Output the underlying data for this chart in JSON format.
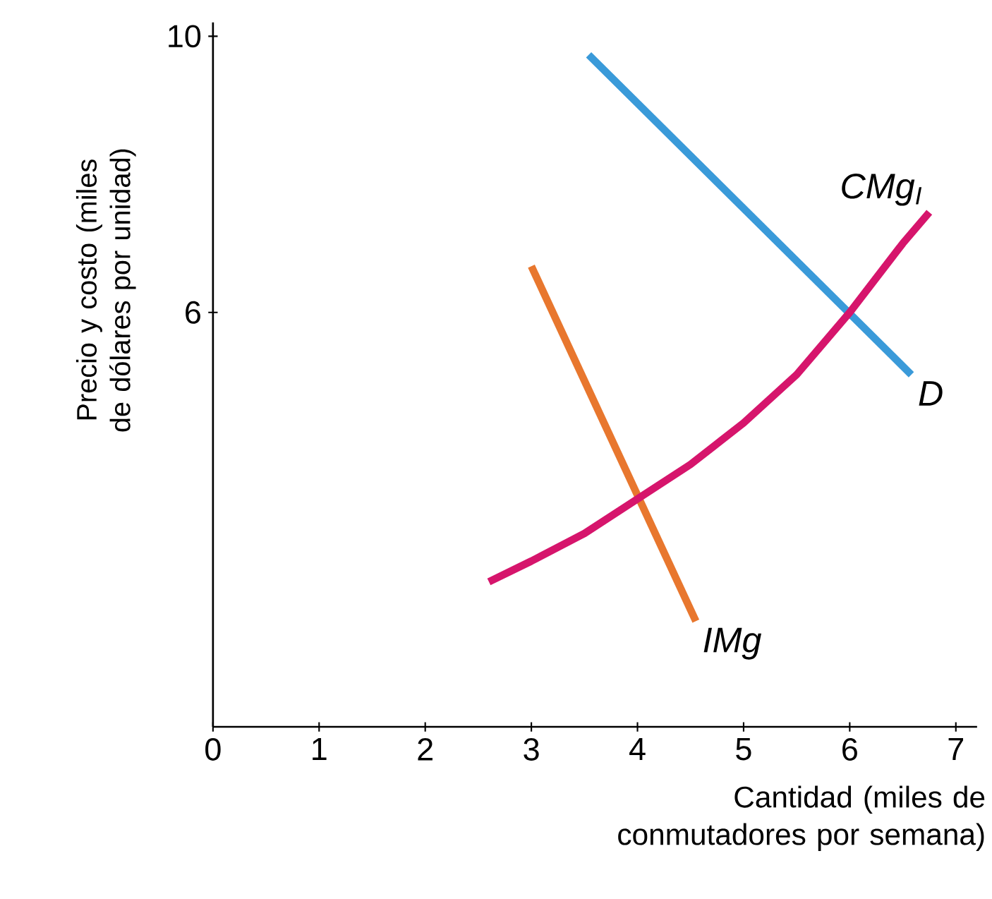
{
  "chart_data": {
    "type": "line",
    "xlabel": "Cantidad (miles de conmutadores por semana)",
    "ylabel": "Precio y costo (miles de dólares por unidad)",
    "xlim": [
      0,
      7.2
    ],
    "ylim": [
      0,
      10.2
    ],
    "xticks": [
      0,
      1,
      2,
      3,
      4,
      5,
      6,
      7
    ],
    "yticks": [
      6,
      10
    ],
    "series": [
      {
        "name": "D",
        "color": "#3a9ad9",
        "x": [
          3.54,
          6.58
        ],
        "values": [
          9.73,
          5.1
        ]
      },
      {
        "name": "IMg",
        "color": "#e8772e",
        "x": [
          3.0,
          4.55
        ],
        "values": [
          6.67,
          1.53
        ]
      },
      {
        "name": "CMg$_{I}$",
        "color": "#d6156c",
        "x": [
          2.6,
          3.0,
          3.5,
          4.0,
          4.5,
          5.0,
          5.5,
          6.0,
          6.5,
          6.75
        ],
        "values": [
          2.1,
          2.4,
          2.8,
          3.3,
          3.8,
          4.4,
          5.1,
          6.0,
          7.0,
          7.45
        ]
      }
    ],
    "grid": false,
    "marker": "none",
    "line_style": "solid"
  }
}
